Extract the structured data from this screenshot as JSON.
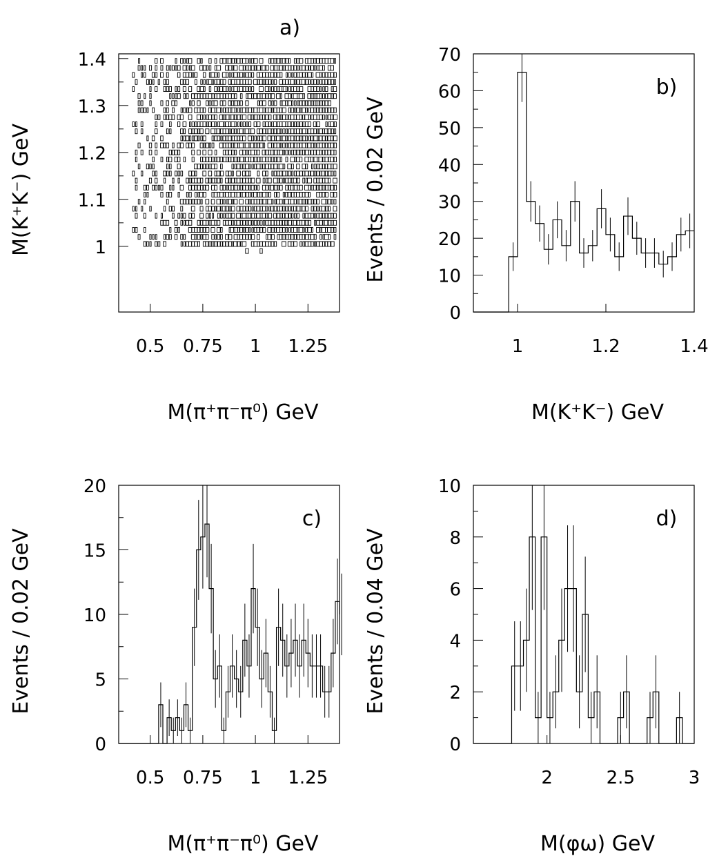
{
  "chart_data": [
    {
      "panel": "a)",
      "type": "scatter",
      "title": "a)",
      "xlabel": "M(π⁺π⁻π⁰)   GeV",
      "ylabel": "M(K⁺K⁻)   GeV",
      "xlim": [
        0.35,
        1.4
      ],
      "ylim": [
        0.86,
        1.41
      ],
      "x_ticks": [
        "0.5",
        "0.75",
        "1",
        "1.25"
      ],
      "y_ticks": [
        "1",
        "1.1",
        "1.2",
        "1.3",
        "1.4"
      ],
      "note": "box plot (2D histogram), box size proportional to bin content",
      "bins": {
        "x_edges_step": 0.02,
        "y_edges_step": 0.02
      }
    },
    {
      "panel": "b)",
      "type": "histogram",
      "title": "b)",
      "xlabel": "M(K⁺K⁻)   GeV",
      "ylabel": "Events / 0.02 GeV",
      "xlim": [
        0.9,
        1.4
      ],
      "ylim": [
        0,
        70
      ],
      "x_ticks": [
        "1",
        "1.2",
        "1.4"
      ],
      "y_ticks": [
        "0",
        "10",
        "20",
        "30",
        "40",
        "50",
        "60",
        "70"
      ],
      "bin_width": 0.02,
      "x_start": 0.98,
      "values": [
        15,
        65,
        30,
        24,
        17,
        25,
        18,
        30,
        16,
        18,
        28,
        21,
        15,
        26,
        20,
        16,
        16,
        13,
        15,
        21,
        22
      ]
    },
    {
      "panel": "c)",
      "type": "histogram",
      "title": "c)",
      "xlabel": "M(π⁺π⁻π⁰)   GeV",
      "ylabel": "Events / 0.02 GeV",
      "xlim": [
        0.35,
        1.4
      ],
      "ylim": [
        0,
        20
      ],
      "x_ticks": [
        "0.5",
        "0.75",
        "1",
        "1.25"
      ],
      "y_ticks": [
        "0",
        "5",
        "10",
        "15",
        "20"
      ],
      "bin_width": 0.02,
      "x_start": 0.5,
      "values": [
        0,
        0,
        3,
        0,
        2,
        1,
        2,
        1,
        3,
        1,
        9,
        15,
        16,
        17,
        12,
        5,
        6,
        1,
        4,
        6,
        5,
        4,
        8,
        6,
        12,
        9,
        5,
        7,
        4,
        1,
        9,
        8,
        6,
        7,
        8,
        6,
        8,
        7,
        6,
        6,
        6,
        4,
        4,
        7,
        11,
        10
      ]
    },
    {
      "panel": "d)",
      "type": "histogram",
      "title": "d)",
      "xlabel": "M(φω)   GeV",
      "ylabel": "Events / 0.04 GeV",
      "xlim": [
        1.5,
        3.0
      ],
      "ylim": [
        0,
        10
      ],
      "x_ticks": [
        "2",
        "2.5",
        "3"
      ],
      "y_ticks": [
        "0",
        "2",
        "4",
        "6",
        "8",
        "10"
      ],
      "bin_width": 0.04,
      "x_start": 1.72,
      "values": [
        0,
        3,
        3,
        4,
        8,
        1,
        8,
        1,
        2,
        4,
        6,
        6,
        2,
        5,
        1,
        2,
        0,
        0,
        0,
        1,
        2,
        0,
        0,
        0,
        1,
        2,
        0,
        0,
        0,
        1,
        0,
        0
      ]
    }
  ]
}
